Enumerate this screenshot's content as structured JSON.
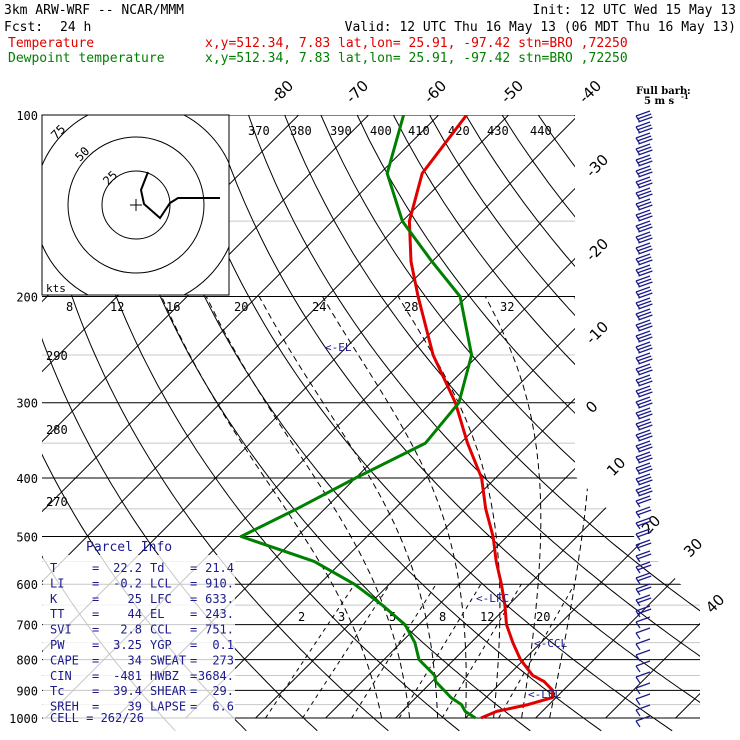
{
  "header": {
    "model": "3km ARW-WRF -- NCAR/MMM",
    "init": "Init: 12 UTC Wed 15 May 13",
    "fcst_label": "Fcst:",
    "fcst_value": "24 h",
    "valid": "Valid: 12 UTC Thu 16 May 13 (06 MDT Thu 16 May 13)",
    "temp_label": "Temperature",
    "temp_loc": "x,y=512.34,  7.83   lat,lon= 25.91, -97.42  stn=BRO ,72250",
    "dew_label": "Dewpoint temperature",
    "dew_loc": "x,y=512.34,  7.83   lat,lon= 25.91, -97.42  stn=BRO ,72250"
  },
  "colors": {
    "temperature": "#e00000",
    "dewpoint": "#008000",
    "wind": "#1a1a8c",
    "grid": "#000000",
    "moist_adiabat": "#000000",
    "mixing_ratio": "#000000"
  },
  "barb_legend": {
    "line1": "Full barb:",
    "line2": "5 m s",
    "exp": "-1"
  },
  "hodograph": {
    "units": "kts",
    "ring_labels": [
      "25",
      "50",
      "75"
    ]
  },
  "parcel_info": {
    "title": "Parcel Info",
    "rows": [
      {
        "k1": "T",
        "v1": "22.2",
        "k2": "Td",
        "v2": "21.4"
      },
      {
        "k1": "LI",
        "v1": "-0.2",
        "k2": "LCL",
        "v2": "910."
      },
      {
        "k1": "K",
        "v1": "25",
        "k2": "LFC",
        "v2": "633."
      },
      {
        "k1": "TT",
        "v1": "44",
        "k2": "EL",
        "v2": "243."
      },
      {
        "k1": "SVI",
        "v1": "2.8",
        "k2": "CCL",
        "v2": "751."
      },
      {
        "k1": "PW",
        "v1": "3.25",
        "k2": "YGP",
        "v2": "0.1"
      },
      {
        "k1": "CAPE",
        "v1": "34",
        "k2": "SWEAT",
        "v2": "273"
      },
      {
        "k1": "CIN",
        "v1": "-481",
        "k2": "HWBZ",
        "v2": "3684."
      },
      {
        "k1": "Tc",
        "v1": "39.4",
        "k2": "SHEAR",
        "v2": "29."
      },
      {
        "k1": "SREH",
        "v1": "39",
        "k2": "LAPSE",
        "v2": "6.6"
      }
    ],
    "cell": "CELL = 262/26"
  },
  "chart_data": {
    "type": "line",
    "diagram": "skew-T log-P",
    "y_axis": {
      "scale": "log",
      "range": [
        1000,
        100
      ],
      "ticks": [
        100,
        200,
        300,
        400,
        500,
        600,
        700,
        800,
        900,
        1000
      ]
    },
    "isotherm_labels": [
      "-80",
      "-70",
      "-60",
      "-50",
      "-40",
      "-30",
      "-20",
      "-10",
      "0",
      "10",
      "20",
      "30",
      "40"
    ],
    "theta_labels": [
      "370",
      "380",
      "390",
      "400",
      "410",
      "420",
      "430",
      "440"
    ],
    "theta_left_labels": [
      "290",
      "280",
      "270"
    ],
    "theta_e_labels": [
      "8",
      "12",
      "16",
      "20",
      "24",
      "28",
      "32"
    ],
    "mixing_ratio_labels": [
      "2",
      "3",
      "5",
      "8",
      "12",
      "20"
    ],
    "annotations": [
      "<-EL",
      "<-LFC",
      "<-CCL",
      "<-LCL"
    ],
    "series": [
      {
        "name": "Temperature",
        "color": "#e00000",
        "points": [
          [
            1000,
            22.2
          ],
          [
            975,
            23.5
          ],
          [
            950,
            27.0
          ],
          [
            925,
            29.5
          ],
          [
            900,
            28.5
          ],
          [
            870,
            26.0
          ],
          [
            850,
            23.5
          ],
          [
            800,
            19.5
          ],
          [
            750,
            16.0
          ],
          [
            700,
            12.5
          ],
          [
            650,
            9.5
          ],
          [
            600,
            6.0
          ],
          [
            550,
            2.0
          ],
          [
            500,
            -2.0
          ],
          [
            450,
            -7.0
          ],
          [
            400,
            -12.0
          ],
          [
            350,
            -19.0
          ],
          [
            300,
            -26.5
          ],
          [
            250,
            -36.5
          ],
          [
            200,
            -47.0
          ],
          [
            175,
            -53.0
          ],
          [
            150,
            -59.0
          ],
          [
            125,
            -64.0
          ],
          [
            100,
            -66.0
          ]
        ]
      },
      {
        "name": "Dewpoint temperature",
        "color": "#008000",
        "points": [
          [
            1000,
            21.4
          ],
          [
            975,
            19.0
          ],
          [
            950,
            17.5
          ],
          [
            925,
            15.0
          ],
          [
            900,
            13.0
          ],
          [
            870,
            10.5
          ],
          [
            850,
            9.5
          ],
          [
            800,
            5.0
          ],
          [
            750,
            2.0
          ],
          [
            700,
            -2.0
          ],
          [
            650,
            -8.0
          ],
          [
            600,
            -15.0
          ],
          [
            550,
            -24.0
          ],
          [
            500,
            -38.0
          ],
          [
            450,
            -34.0
          ],
          [
            400,
            -30.0
          ],
          [
            350,
            -25.0
          ],
          [
            300,
            -26.0
          ],
          [
            250,
            -31.0
          ],
          [
            200,
            -41.0
          ],
          [
            175,
            -50.0
          ],
          [
            150,
            -60.0
          ],
          [
            125,
            -69.0
          ],
          [
            100,
            -75.0
          ]
        ]
      }
    ]
  }
}
